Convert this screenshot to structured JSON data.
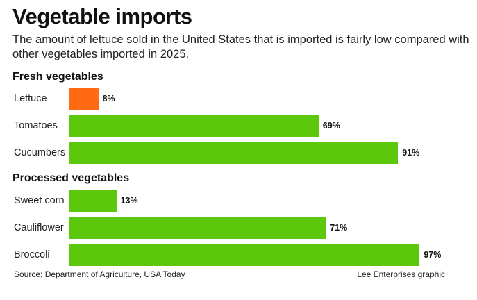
{
  "header": {
    "title": "Vegetable imports",
    "subtitle": "The amount of lettuce sold in the United States that is imported is fairly low compared with other vegetables imported in 2025."
  },
  "colors": {
    "highlight": "#ff6a13",
    "bar": "#5bc80c"
  },
  "chart_data": {
    "type": "bar",
    "orientation": "horizontal",
    "value_unit": "%",
    "groups": [
      {
        "name": "Fresh vegetables",
        "items": [
          {
            "label": "Lettuce",
            "value": 8,
            "value_label": "8%",
            "highlight": true
          },
          {
            "label": "Tomatoes",
            "value": 69,
            "value_label": "69%",
            "highlight": false
          },
          {
            "label": "Cucumbers",
            "value": 91,
            "value_label": "91%",
            "highlight": false
          }
        ]
      },
      {
        "name": "Processed vegetables",
        "items": [
          {
            "label": "Sweet corn",
            "value": 13,
            "value_label": "13%",
            "highlight": false
          },
          {
            "label": "Cauliflower",
            "value": 71,
            "value_label": "71%",
            "highlight": false
          },
          {
            "label": "Broccoli",
            "value": 97,
            "value_label": "97%",
            "highlight": false
          }
        ]
      }
    ],
    "xlim": [
      0,
      100
    ],
    "grid": false
  },
  "footer": {
    "source": "Source: Department of Agriculture, USA Today",
    "credit": "Lee Enterprises graphic"
  }
}
